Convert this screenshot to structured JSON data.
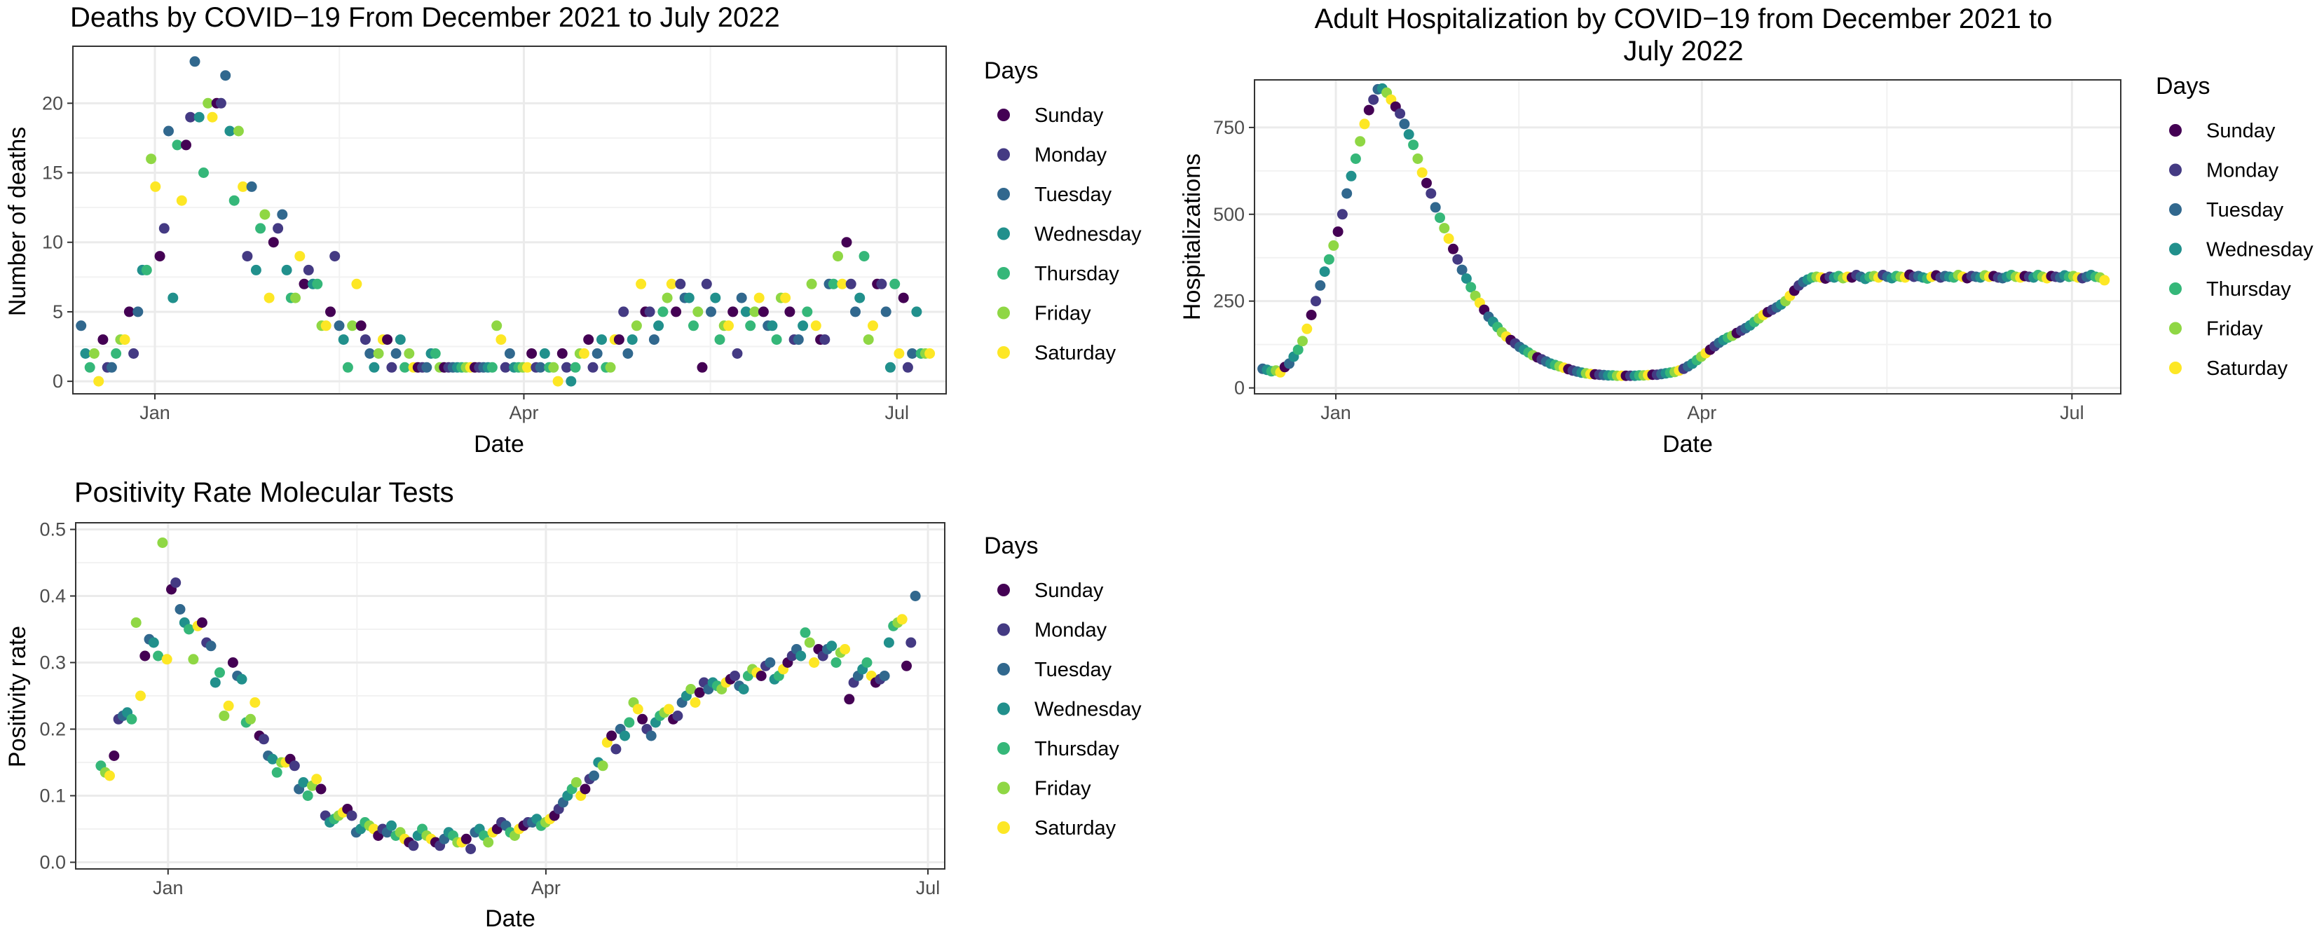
{
  "legend": {
    "title": "Days",
    "items": [
      {
        "label": "Sunday",
        "color": "#440154"
      },
      {
        "label": "Monday",
        "color": "#443A83"
      },
      {
        "label": "Tuesday",
        "color": "#31688E"
      },
      {
        "label": "Wednesday",
        "color": "#21908C"
      },
      {
        "label": "Thursday",
        "color": "#35B779"
      },
      {
        "label": "Friday",
        "color": "#8FD744"
      },
      {
        "label": "Saturday",
        "color": "#FDE725"
      }
    ]
  },
  "chart_data": [
    {
      "type": "scatter",
      "title": "Deaths by COVID−19 From December 2021 to July 2022",
      "title_lines": [
        "Deaths by COVID−19 From December 2021 to July 2022"
      ],
      "xlabel": "Date",
      "ylabel": "Number of deaths",
      "x_ticks": [
        {
          "date": "2022-01-01",
          "label": "Jan"
        },
        {
          "date": "2022-04-01",
          "label": "Apr"
        },
        {
          "date": "2022-07-01",
          "label": "Jul"
        }
      ],
      "x_range": [
        "2021-12-12",
        "2022-07-13"
      ],
      "y_ticks": [
        0,
        5,
        10,
        15,
        20
      ],
      "y_range": [
        -0.9,
        24.1
      ],
      "start_date": "2021-12-14",
      "end_date": "2022-07-09",
      "first_weekday_index": 2,
      "values": [
        4,
        2,
        1,
        2,
        0,
        3,
        1,
        1,
        2,
        3,
        3,
        5,
        2,
        5,
        8,
        8,
        16,
        14,
        9,
        11,
        18,
        6,
        17,
        13,
        17,
        19,
        23,
        19,
        15,
        20,
        19,
        20,
        20,
        22,
        18,
        13,
        18,
        14,
        9,
        14,
        8,
        11,
        12,
        6,
        10,
        11,
        12,
        8,
        6,
        6,
        9,
        7,
        8,
        7,
        7,
        4,
        4,
        5,
        9,
        4,
        3,
        1,
        4,
        7,
        4,
        3,
        2,
        1,
        2,
        3,
        3,
        1,
        2,
        3,
        1,
        2,
        1,
        1,
        1,
        1,
        2,
        2,
        1,
        1,
        1,
        1,
        1,
        1,
        1,
        1,
        1,
        1,
        1,
        1,
        1,
        4,
        3,
        1,
        2,
        1,
        1,
        1,
        1,
        2,
        1,
        1,
        2,
        1,
        1,
        0,
        2,
        1,
        0,
        1,
        2,
        2,
        3,
        1,
        2,
        3,
        1,
        1,
        3,
        3,
        5,
        2,
        3,
        4,
        7,
        5,
        5,
        3,
        4,
        5,
        6,
        7,
        5,
        7,
        6,
        6,
        4,
        5,
        1,
        7,
        5,
        6,
        3,
        4,
        4,
        5,
        2,
        6,
        5,
        4,
        5,
        6,
        5,
        4,
        4,
        3,
        6,
        6,
        5,
        3,
        3,
        4,
        5,
        7,
        4,
        3,
        3,
        7,
        7,
        9,
        7,
        10,
        7,
        5,
        6,
        9,
        3,
        4,
        7,
        7,
        5,
        1,
        7,
        2,
        6,
        1,
        2,
        5,
        2,
        2,
        2
      ]
    },
    {
      "type": "scatter",
      "title": "Adult Hospitalization by COVID−19 from December 2021 to July 2022",
      "title_lines": [
        "Adult Hospitalization by COVID−19 from December 2021 to",
        "July 2022"
      ],
      "xlabel": "Date",
      "ylabel": "Hospitalizations",
      "x_ticks": [
        {
          "date": "2022-01-01",
          "label": "Jan"
        },
        {
          "date": "2022-04-01",
          "label": "Apr"
        },
        {
          "date": "2022-07-01",
          "label": "Jul"
        }
      ],
      "x_range": [
        "2021-12-12",
        "2022-07-13"
      ],
      "y_ticks": [
        0,
        250,
        500,
        750
      ],
      "y_ticks_labels": [
        "0",
        "250",
        "500",
        "750"
      ],
      "y_range": [
        -17,
        887
      ],
      "start_date": "2021-12-14",
      "end_date": "2022-07-09",
      "first_weekday_index": 2,
      "values": [
        55,
        52,
        48,
        50,
        45,
        60,
        70,
        90,
        110,
        135,
        170,
        210,
        250,
        295,
        335,
        370,
        410,
        450,
        500,
        560,
        610,
        660,
        710,
        760,
        800,
        830,
        860,
        862,
        850,
        830,
        810,
        790,
        760,
        730,
        700,
        660,
        620,
        590,
        560,
        520,
        490,
        460,
        430,
        400,
        370,
        340,
        315,
        290,
        265,
        245,
        225,
        205,
        190,
        175,
        160,
        148,
        138,
        128,
        118,
        110,
        102,
        94,
        88,
        82,
        76,
        70,
        66,
        62,
        58,
        54,
        50,
        47,
        44,
        42,
        40,
        39,
        38,
        37,
        36,
        36,
        35,
        35,
        35,
        35,
        35,
        36,
        36,
        37,
        38,
        38,
        40,
        42,
        44,
        46,
        50,
        55,
        62,
        70,
        80,
        90,
        100,
        110,
        120,
        130,
        138,
        145,
        150,
        158,
        165,
        172,
        180,
        190,
        200,
        210,
        218,
        225,
        232,
        240,
        250,
        265,
        280,
        295,
        305,
        312,
        318,
        320,
        318,
        315,
        320,
        318,
        322,
        316,
        320,
        318,
        325,
        320,
        314,
        320,
        322,
        318,
        325,
        320,
        316,
        322,
        320,
        318,
        326,
        320,
        322,
        318,
        315,
        320,
        324,
        318,
        322,
        320,
        318,
        325,
        320,
        316,
        322,
        320,
        318,
        324,
        320,
        322,
        318,
        316,
        320,
        325,
        320,
        318,
        322,
        320,
        318,
        325,
        320,
        316,
        322,
        320,
        318,
        324,
        320,
        322,
        318,
        316,
        320,
        325,
        320,
        318,
        310
      ]
    },
    {
      "type": "scatter",
      "title": "Positivity Rate Molecular Tests",
      "title_lines": [
        "Positivity Rate Molecular Tests"
      ],
      "xlabel": "Date",
      "ylabel": "Positivity rate",
      "x_ticks": [
        {
          "date": "2022-01-01",
          "label": "Jan"
        },
        {
          "date": "2022-04-01",
          "label": "Apr"
        },
        {
          "date": "2022-07-01",
          "label": "Jul"
        }
      ],
      "x_range": [
        "2021-12-10",
        "2022-07-05"
      ],
      "y_ticks": [
        0,
        0.1,
        0.2,
        0.3,
        0.4,
        0.5
      ],
      "y_ticks_labels": [
        "0.0",
        "0.1",
        "0.2",
        "0.3",
        "0.4",
        "0.5"
      ],
      "y_range": [
        -0.01,
        0.51
      ],
      "start_date": "2021-12-16",
      "end_date": "2022-06-28",
      "first_weekday_index": 4,
      "values": [
        0.145,
        0.135,
        0.13,
        0.16,
        0.215,
        0.22,
        0.225,
        0.215,
        0.36,
        0.25,
        0.31,
        0.335,
        0.33,
        0.31,
        0.48,
        0.305,
        0.41,
        0.42,
        0.38,
        0.36,
        0.35,
        0.305,
        0.355,
        0.36,
        0.33,
        0.325,
        0.27,
        0.285,
        0.22,
        0.235,
        0.3,
        0.28,
        0.275,
        0.21,
        0.215,
        0.24,
        0.19,
        0.185,
        0.16,
        0.155,
        0.135,
        0.15,
        0.15,
        0.155,
        0.145,
        0.11,
        0.12,
        0.1,
        0.115,
        0.125,
        0.11,
        0.07,
        0.06,
        0.065,
        0.07,
        0.075,
        0.08,
        0.07,
        0.045,
        0.05,
        0.06,
        0.055,
        0.05,
        0.04,
        0.05,
        0.045,
        0.055,
        0.04,
        0.045,
        0.035,
        0.03,
        0.025,
        0.04,
        0.05,
        0.04,
        0.035,
        0.03,
        0.025,
        0.035,
        0.045,
        0.04,
        0.03,
        0.03,
        0.035,
        0.02,
        0.045,
        0.05,
        0.04,
        0.03,
        0.045,
        0.05,
        0.06,
        0.055,
        0.045,
        0.04,
        0.05,
        0.055,
        0.06,
        0.06,
        0.065,
        0.055,
        0.06,
        0.065,
        0.07,
        0.08,
        0.09,
        0.1,
        0.11,
        0.12,
        0.1,
        0.11,
        0.125,
        0.13,
        0.15,
        0.145,
        0.18,
        0.19,
        0.17,
        0.2,
        0.19,
        0.21,
        0.24,
        0.23,
        0.215,
        0.2,
        0.19,
        0.21,
        0.22,
        0.225,
        0.23,
        0.215,
        0.22,
        0.24,
        0.25,
        0.26,
        0.24,
        0.255,
        0.27,
        0.26,
        0.27,
        0.265,
        0.26,
        0.27,
        0.275,
        0.28,
        0.265,
        0.26,
        0.28,
        0.29,
        0.285,
        0.28,
        0.295,
        0.3,
        0.275,
        0.28,
        0.29,
        0.3,
        0.31,
        0.32,
        0.31,
        0.345,
        0.33,
        0.3,
        0.32,
        0.31,
        0.32,
        0.325,
        0.3,
        0.315,
        0.32,
        0.245,
        0.27,
        0.28,
        0.29,
        0.3,
        0.28,
        0.27,
        0.275,
        0.28,
        0.33,
        0.355,
        0.36,
        0.365,
        0.295,
        0.33,
        0.4
      ]
    }
  ]
}
